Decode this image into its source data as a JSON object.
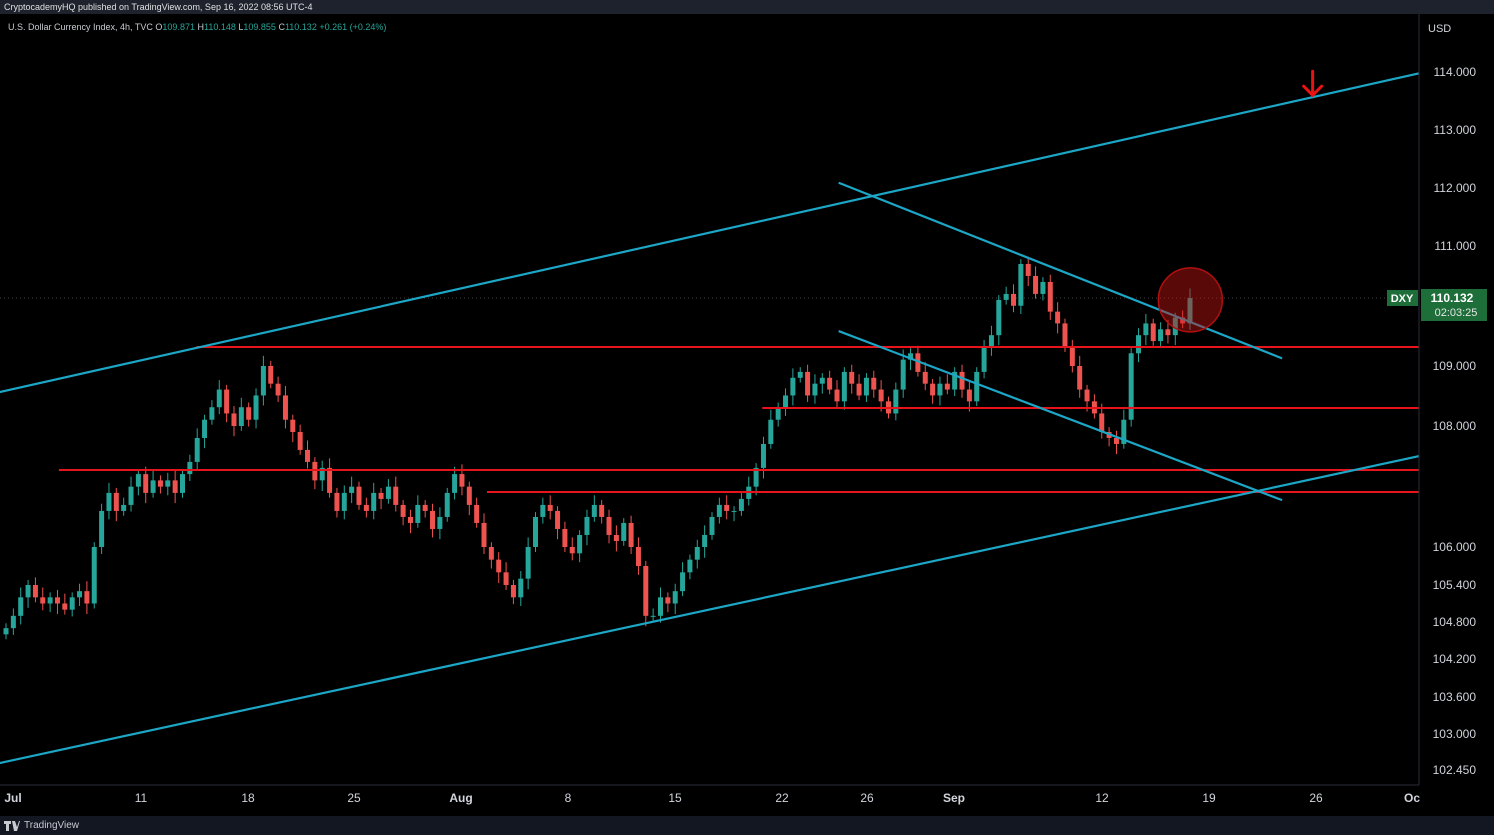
{
  "header": {
    "publisher": "CryptocademyHQ published on TradingView.com, Sep 16, 2022 08:56 UTC-4"
  },
  "legend": {
    "symbol": "U.S. Dollar Currency Index, 4h, TVC",
    "open_label": "O",
    "open": "109.871",
    "high_label": "H",
    "high": "110.148",
    "low_label": "L",
    "low": "109.855",
    "close_label": "C",
    "close": "110.132",
    "change": "+0.261 (+0.24%)"
  },
  "footer": {
    "brand": "TradingView"
  },
  "colors": {
    "background": "#000000",
    "up": "#26a69a",
    "down": "#ef5350",
    "trendline": "#1ca7c7",
    "level": "#e8141b",
    "price_tag": "#1e6e3a"
  },
  "chart_data": {
    "type": "candlestick",
    "currency": "USD",
    "symbol_tag": "DXY",
    "last_price": "110.132",
    "countdown": "02:03:25",
    "ylim": [
      102.3,
      115.0
    ],
    "y_ticks": [
      "114.000",
      "113.000",
      "112.000",
      "111.000",
      "109.000",
      "108.000",
      "106.000",
      "105.400",
      "104.800",
      "104.200",
      "103.600",
      "103.000",
      "102.450"
    ],
    "x_ticks": [
      "Jul",
      "11",
      "18",
      "25",
      "Aug",
      "8",
      "15",
      "22",
      "26",
      "Sep",
      "12",
      "19",
      "26",
      "Oc"
    ],
    "horizontal_levels": [
      {
        "label": "109.299",
        "value": 109.299,
        "from_date": "Jul 13"
      },
      {
        "label": "108.287",
        "value": 108.287,
        "from_date": "Aug 19"
      },
      {
        "label": "107.265",
        "value": 107.265,
        "from_date": "Jul 4"
      },
      {
        "label": "106.915",
        "value": 106.915,
        "from_date": "Aug 1"
      }
    ],
    "series": [
      {
        "values": [
          104.7,
          104.9,
          105.2,
          105.4,
          105.2,
          105.1,
          105.2,
          105.1,
          105.0,
          105.2,
          105.3,
          105.1,
          106.0,
          106.6,
          106.9,
          106.6,
          106.7,
          107.0,
          107.2,
          106.9,
          107.1,
          107.0,
          107.1,
          106.9,
          107.2,
          107.4,
          107.8,
          108.1,
          108.3,
          108.6,
          108.2,
          108.0,
          108.3,
          108.1,
          108.5,
          109.0,
          108.7,
          108.5,
          108.1,
          107.9,
          107.6,
          107.4,
          107.1,
          107.3,
          106.9,
          106.6,
          106.9,
          107.0,
          106.7,
          106.6,
          106.9,
          106.8,
          107.0,
          106.7,
          106.5,
          106.4,
          106.7,
          106.6,
          106.3,
          106.5,
          106.9,
          107.2,
          107.0,
          106.7,
          106.4,
          106.0,
          105.8,
          105.6,
          105.4,
          105.2,
          105.5,
          106.0,
          106.5,
          106.7,
          106.6,
          106.3,
          106.0,
          105.9,
          106.2,
          106.5,
          106.7,
          106.5,
          106.2,
          106.1,
          106.4,
          106.0,
          105.7,
          104.9,
          104.9,
          105.2,
          105.1,
          105.3,
          105.6,
          105.8,
          106.0,
          106.2,
          106.5,
          106.7,
          106.6,
          106.6,
          106.8,
          107.0,
          107.3,
          107.7,
          108.1,
          108.3,
          108.5,
          108.8,
          108.9,
          108.5,
          108.7,
          108.8,
          108.6,
          108.4,
          108.9,
          108.7,
          108.5,
          108.8,
          108.6,
          108.4,
          108.2,
          108.6,
          109.1,
          109.2,
          108.9,
          108.7,
          108.5,
          108.7,
          108.6,
          108.9,
          108.6,
          108.4,
          108.9,
          109.3,
          109.5,
          110.1,
          110.2,
          110.0,
          110.7,
          110.5,
          110.2,
          110.4,
          109.9,
          109.7,
          109.3,
          109.0,
          108.6,
          108.4,
          108.2,
          107.9,
          107.8,
          107.7,
          108.1,
          109.2,
          109.5,
          109.7,
          109.4,
          109.6,
          109.5,
          109.8,
          109.7,
          110.13
        ]
      }
    ],
    "annotations": {
      "channel_upper": [
        [
          "Jun 30",
          108.55
        ],
        [
          "Oct 1",
          113.98
        ]
      ],
      "channel_lower": [
        [
          "Jun 30",
          102.55
        ],
        [
          "Oct 1",
          107.5
        ]
      ],
      "wedge_upper": [
        [
          "Aug 24",
          112.09
        ],
        [
          "Sep 22",
          109.12
        ]
      ],
      "wedge_lower": [
        [
          "Aug 24",
          109.57
        ],
        [
          "Sep 22",
          106.78
        ]
      ],
      "down_arrow_near": [
        "Sep 24",
        113.6
      ],
      "highlight_circle_at": [
        "Sep 16",
        110.1
      ]
    }
  }
}
